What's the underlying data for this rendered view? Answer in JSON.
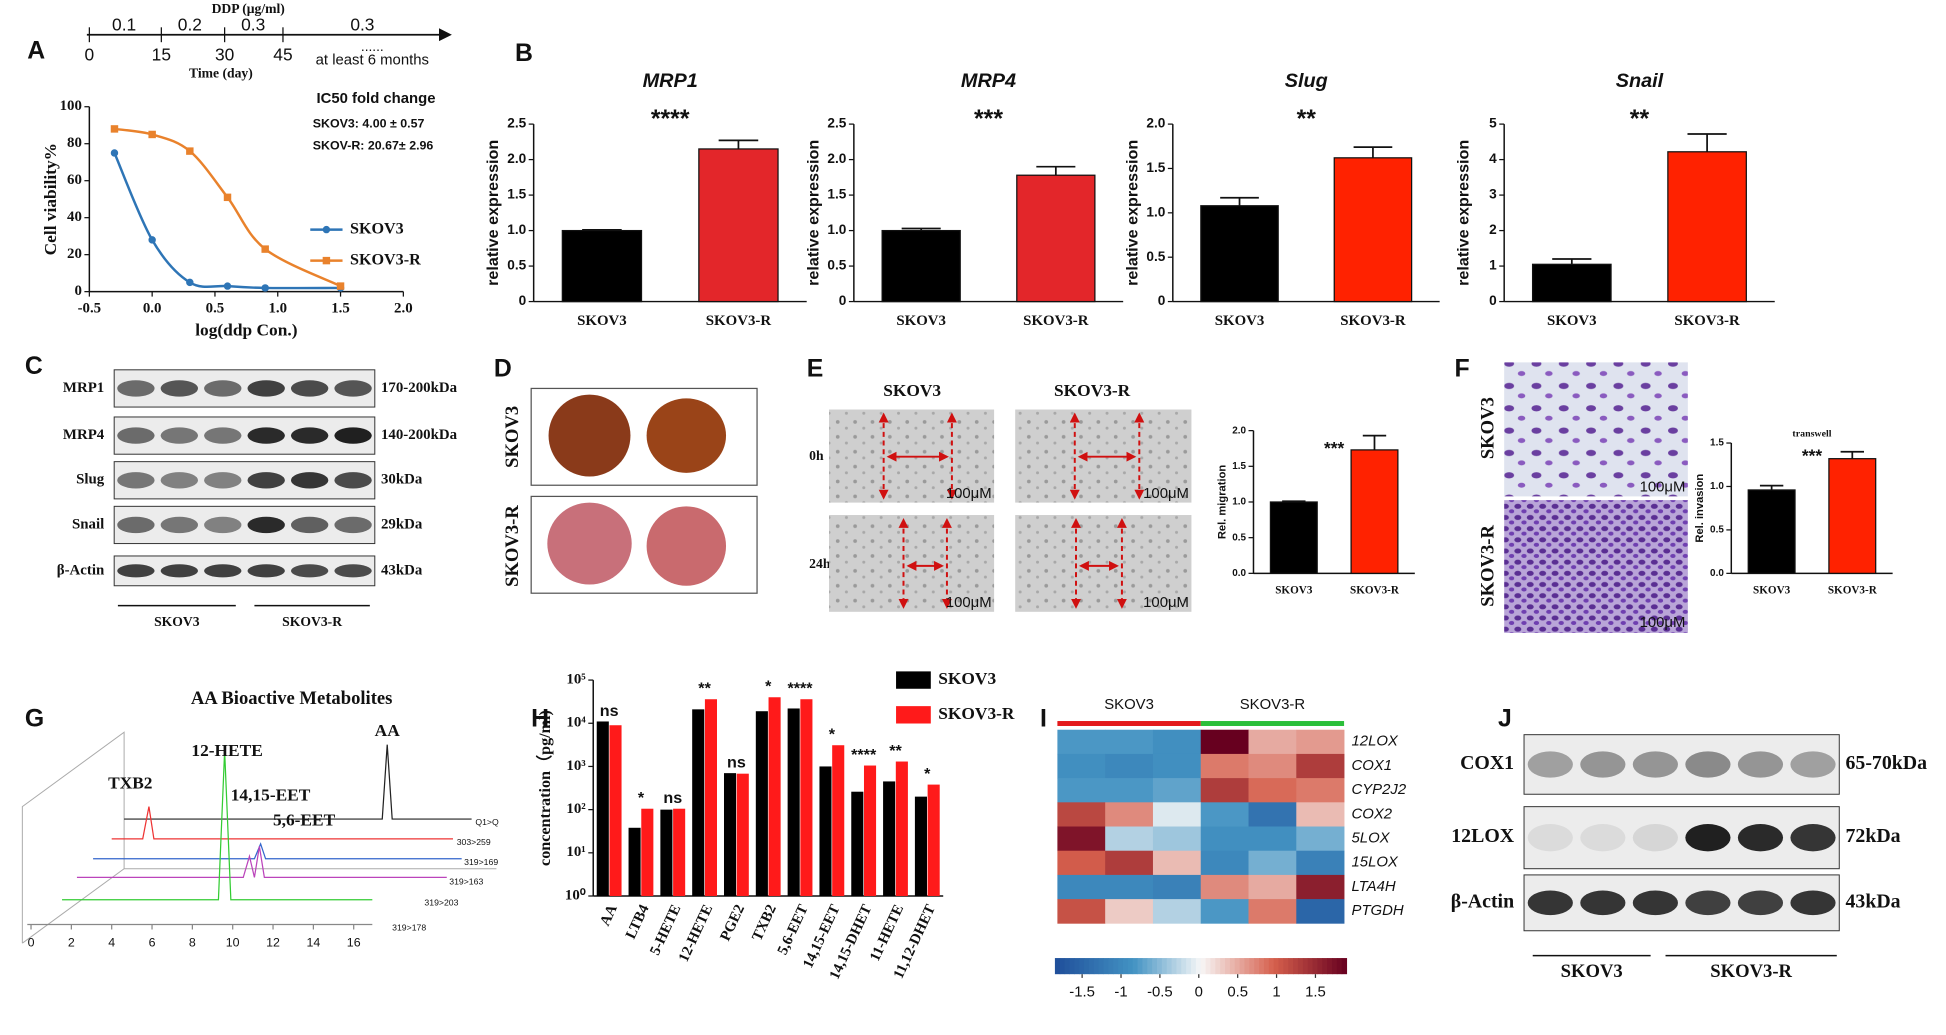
{
  "panels": [
    "A",
    "B",
    "C",
    "D",
    "E",
    "F",
    "G",
    "H",
    "I",
    "J"
  ],
  "timeline": {
    "unit_label": "DDP (μg/ml)",
    "doses": [
      "0.1",
      "0.2",
      "0.3",
      "0.3"
    ],
    "days": [
      "0",
      "15",
      "30",
      "45"
    ],
    "end": "at least 6 months",
    "dots": "......",
    "axis_label": "Time  (day)"
  },
  "chart_data": [
    {
      "type": "line",
      "x_label": "log(ddp Con.)",
      "y_label": "Cell viability%",
      "x": [
        -0.3,
        0,
        0.3,
        0.6,
        0.9,
        1.5
      ],
      "series": [
        {
          "name": "SKOV3",
          "color": "#2e75b6",
          "marker": "circle",
          "values": [
            75,
            28,
            5,
            3,
            2,
            2
          ]
        },
        {
          "name": "SKOV3-R",
          "color": "#e9822c",
          "marker": "square",
          "values": [
            88,
            85,
            76,
            51,
            23,
            3
          ]
        }
      ],
      "xlim": [
        -0.5,
        2
      ],
      "xticks": [
        -0.5,
        {
          "value": 0,
          "label": "0.0"
        },
        0.5,
        {
          "value": 1,
          "label": "1.0"
        },
        1.5,
        {
          "value": 2,
          "label": "2.0"
        }
      ],
      "ylim": [
        0,
        100
      ],
      "yticks": [
        0,
        20,
        40,
        60,
        80,
        100
      ],
      "annotations": [
        "IC50 fold change",
        "SKOV3: 4.00 ± 0.57",
        "SKOV-R: 20.67± 2.96"
      ]
    },
    {
      "type": "bar",
      "title": "MRP1",
      "y_label": "relative expression",
      "categories": [
        "SKOV3",
        "SKOV3-R"
      ],
      "values": [
        1.0,
        2.15
      ],
      "errors": [
        0.01,
        0.12
      ],
      "colors": [
        "#000000",
        "#e3262a"
      ],
      "ylim": [
        0,
        2.5
      ],
      "yticks": [
        0,
        0.5,
        {
          "value": 1,
          "label": "1.0"
        },
        1.5,
        {
          "value": 2,
          "label": "2.0"
        },
        2.5
      ],
      "significance": "****"
    },
    {
      "type": "bar",
      "title": "MRP4",
      "y_label": "relative expression",
      "categories": [
        "SKOV3",
        "SKOV3-R"
      ],
      "values": [
        1.0,
        1.78
      ],
      "errors": [
        0.03,
        0.12
      ],
      "colors": [
        "#000000",
        "#e3262a"
      ],
      "ylim": [
        0,
        2.5
      ],
      "yticks": [
        0,
        0.5,
        {
          "value": 1,
          "label": "1.0"
        },
        1.5,
        {
          "value": 2,
          "label": "2.0"
        },
        2.5
      ],
      "significance": "***"
    },
    {
      "type": "bar",
      "title": "Slug",
      "y_label": "relative expression",
      "categories": [
        "SKOV3",
        "SKOV3-R"
      ],
      "values": [
        1.08,
        1.62
      ],
      "errors": [
        0.09,
        0.12
      ],
      "colors": [
        "#000000",
        "#ff2200"
      ],
      "ylim": [
        0,
        2
      ],
      "yticks": [
        0,
        0.5,
        {
          "value": 1,
          "label": "1.0"
        },
        1.5,
        {
          "value": 2,
          "label": "2.0"
        }
      ],
      "significance": "**"
    },
    {
      "type": "bar",
      "title": "Snail",
      "y_label": "relative expression",
      "categories": [
        "SKOV3",
        "SKOV3-R"
      ],
      "values": [
        1.05,
        4.22
      ],
      "errors": [
        0.15,
        0.5
      ],
      "colors": [
        "#000000",
        "#ff2200"
      ],
      "ylim": [
        0,
        5
      ],
      "yticks": [
        0,
        1,
        2,
        3,
        4,
        5
      ],
      "significance": "**"
    },
    {
      "type": "bar",
      "y_label": "Rel. migration",
      "categories": [
        "SKOV3",
        "SKOV3-R"
      ],
      "values": [
        1.0,
        1.73
      ],
      "errors": [
        0.01,
        0.2
      ],
      "colors": [
        "#000000",
        "#ff2200"
      ],
      "ylim": [
        0,
        2
      ],
      "yticks": [
        {
          "value": 0,
          "label": "0.0"
        },
        0.5,
        {
          "value": 1,
          "label": "1.0"
        },
        1.5,
        {
          "value": 2,
          "label": "2.0"
        }
      ],
      "significance": "***"
    },
    {
      "type": "bar",
      "title": "transwell",
      "y_label": "Rel. invasion",
      "categories": [
        "SKOV3",
        "SKOV3-R"
      ],
      "values": [
        0.96,
        1.32
      ],
      "errors": [
        0.05,
        0.08
      ],
      "colors": [
        "#000000",
        "#ff2200"
      ],
      "ylim": [
        0,
        1.5
      ],
      "yticks": [
        {
          "value": 0,
          "label": "0.0"
        },
        0.5,
        {
          "value": 1,
          "label": "1.0"
        },
        1.5
      ],
      "significance": "***"
    },
    {
      "type": "bar",
      "y_label": "concentration（pg/ml)",
      "log_scale": true,
      "legend": "upper right",
      "categories": [
        "AA",
        "LTB4",
        "5-HETE",
        "12-HETE",
        "PGE2",
        "TXB2",
        "5,6-EET",
        "14,15-EET",
        "14,15-DHET",
        "11-HETE",
        "11,12-DHET"
      ],
      "series": [
        {
          "name": "SKOV3",
          "color": "#000000",
          "values": [
            11000,
            38,
            100,
            21000,
            700,
            19000,
            22000,
            1000,
            260,
            450,
            200
          ]
        },
        {
          "name": "SKOV3-R",
          "color": "#ff1a1a",
          "values": [
            9000,
            105,
            105,
            36000,
            680,
            40000,
            36000,
            3100,
            1050,
            1300,
            380
          ]
        }
      ],
      "significance": [
        "ns",
        "*",
        "ns",
        "**",
        "ns",
        "*",
        "****",
        "*",
        "****",
        "**",
        "*"
      ],
      "ylim": [
        1,
        100000
      ],
      "yticks": [
        {
          "value": 1,
          "label": "10⁰"
        },
        {
          "value": 10,
          "label": "10¹"
        },
        {
          "value": 100,
          "label": "10²"
        },
        {
          "value": 1000,
          "label": "10³"
        },
        {
          "value": 10000,
          "label": "10⁴"
        },
        {
          "value": 100000,
          "label": "10⁵"
        }
      ]
    },
    {
      "type": "heatmap",
      "column_groups": [
        "SKOV3",
        "SKOV3-R"
      ],
      "group_colors": [
        "#e31a1c",
        "#2bbf3a"
      ],
      "rows": [
        "12LOX",
        "COX1",
        "CYP2J2",
        "COX2",
        "5LOX",
        "15LOX",
        "LTA4H",
        "PTGDH"
      ],
      "values": [
        [
          -0.8,
          -0.8,
          -0.9,
          1.9,
          0.5,
          0.6
        ],
        [
          -0.9,
          -1.0,
          -0.9,
          0.8,
          0.7,
          1.3
        ],
        [
          -0.8,
          -0.8,
          -0.7,
          1.3,
          0.9,
          0.8
        ],
        [
          1.2,
          0.7,
          -0.1,
          -0.8,
          -1.3,
          0.4
        ],
        [
          1.7,
          -0.3,
          -0.4,
          -0.9,
          -0.9,
          -0.6
        ],
        [
          1.0,
          1.3,
          0.4,
          -1.0,
          -0.6,
          -1.1
        ],
        [
          -1.0,
          -1.0,
          -1.1,
          0.7,
          0.5,
          1.6
        ],
        [
          1.1,
          0.3,
          -0.3,
          -0.8,
          0.8,
          -1.5
        ]
      ],
      "zlim": [
        -1.85,
        1.9
      ],
      "colorbar_ticks": [
        -1.5,
        -1,
        -0.5,
        0,
        0.5,
        1,
        1.5
      ]
    }
  ],
  "blot_c": {
    "rows": [
      {
        "label": "MRP1",
        "size": "170-200kDa"
      },
      {
        "label": "MRP4",
        "size": "140-200kDa"
      },
      {
        "label": "Slug",
        "size": "30kDa"
      },
      {
        "label": "Snail",
        "size": "29kDa"
      },
      {
        "label": "β-Actin",
        "size": "43kDa"
      }
    ],
    "groups": [
      "SKOV3",
      "SKOV3-R"
    ]
  },
  "liver_d": {
    "groups": [
      "SKOV3",
      "SKOV3-R"
    ]
  },
  "wound_e": {
    "columns": [
      "SKOV3",
      "SKOV3-R"
    ],
    "rows": [
      "0h",
      "24h"
    ],
    "scale_bar": "100μM"
  },
  "transwell_f": {
    "rows": [
      "SKOV3",
      "SKOV3-R"
    ],
    "scale_bar": "100μM"
  },
  "chromatogram_g": {
    "title": "AA  Bioactive Metabolites",
    "peaks": [
      "TXB2",
      "12-HETE",
      "AA",
      "14,15-EET",
      "5,6-EET"
    ],
    "transitions": [
      "Q1>Q",
      "303>259",
      "319>169",
      "319>163",
      "319>203",
      "319>178"
    ],
    "xticks": [
      "0",
      "2",
      "4",
      "6",
      "8",
      "10",
      "12",
      "14",
      "16"
    ]
  },
  "blot_j": {
    "rows": [
      {
        "label": "COX1",
        "size": "65-70kDa"
      },
      {
        "label": "12LOX",
        "size": "72kDa"
      },
      {
        "label": "β-Actin",
        "size": "43kDa"
      }
    ],
    "groups": [
      "SKOV3",
      "SKOV3-R"
    ]
  }
}
